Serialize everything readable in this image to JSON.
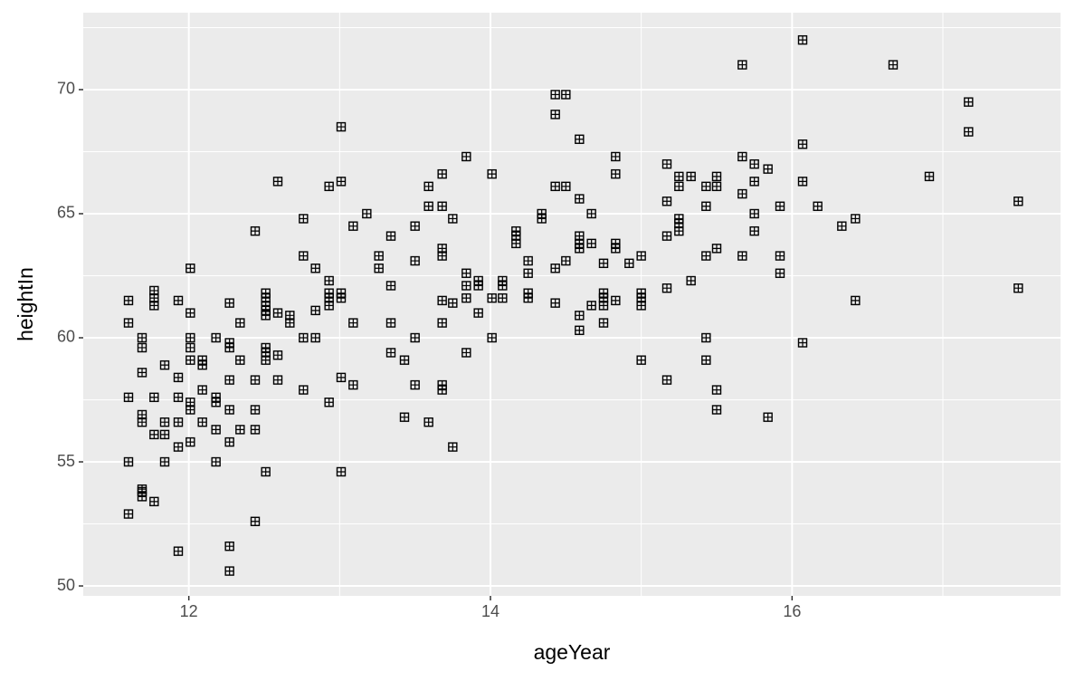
{
  "chart_data": {
    "type": "scatter",
    "x_label": "ageYear",
    "y_label": "heightIn",
    "xlim": [
      11.3,
      17.78
    ],
    "ylim": [
      49.6,
      73.1
    ],
    "xticks": [
      12,
      14,
      16
    ],
    "yticks": [
      50,
      55,
      60,
      65,
      70
    ],
    "x_minor_ticks": [
      11,
      13,
      15,
      17
    ],
    "y_minor_ticks": [
      52.5,
      57.5,
      62.5,
      67.5,
      72.5
    ],
    "grid": true,
    "background": "#ebebeb",
    "color": "#000000",
    "marker": "square-plus",
    "x": [
      11.6,
      11.6,
      11.6,
      11.6,
      11.6,
      11.69,
      11.69,
      11.69,
      11.69,
      11.69,
      11.69,
      11.69,
      11.69,
      11.77,
      11.77,
      11.77,
      11.77,
      11.77,
      11.77,
      11.84,
      11.84,
      11.84,
      11.84,
      11.93,
      11.93,
      11.93,
      11.93,
      11.93,
      11.93,
      12.01,
      12.01,
      12.01,
      12.01,
      12.01,
      12.01,
      12.01,
      12.01,
      12.09,
      12.09,
      12.09,
      12.09,
      12.18,
      12.18,
      12.18,
      12.18,
      12.18,
      12.27,
      12.27,
      12.27,
      12.27,
      12.27,
      12.27,
      12.27,
      12.27,
      12.34,
      12.34,
      12.34,
      12.44,
      12.44,
      12.44,
      12.44,
      12.44,
      12.51,
      12.51,
      12.51,
      12.51,
      12.51,
      12.51,
      12.51,
      12.51,
      12.51,
      12.59,
      12.59,
      12.59,
      12.59,
      12.67,
      12.67,
      12.76,
      12.76,
      12.76,
      12.76,
      12.84,
      12.84,
      12.84,
      12.93,
      12.93,
      12.93,
      12.93,
      12.93,
      12.93,
      13.01,
      13.01,
      13.01,
      13.01,
      13.01,
      13.01,
      13.09,
      13.09,
      13.09,
      13.18,
      13.26,
      13.26,
      13.34,
      13.34,
      13.34,
      13.34,
      13.43,
      13.43,
      13.5,
      13.5,
      13.5,
      13.5,
      13.59,
      13.59,
      13.59,
      13.68,
      13.68,
      13.68,
      13.68,
      13.68,
      13.68,
      13.68,
      13.68,
      13.75,
      13.75,
      13.75,
      13.84,
      13.84,
      13.84,
      13.84,
      13.84,
      13.92,
      13.92,
      13.92,
      14.01,
      14.01,
      14.01,
      14.08,
      14.08,
      14.08,
      14.17,
      14.17,
      14.17,
      14.25,
      14.25,
      14.25,
      14.25,
      14.34,
      14.34,
      14.43,
      14.43,
      14.43,
      14.43,
      14.43,
      14.5,
      14.5,
      14.5,
      14.59,
      14.59,
      14.59,
      14.59,
      14.59,
      14.59,
      14.59,
      14.67,
      14.67,
      14.67,
      14.75,
      14.75,
      14.75,
      14.75,
      14.75,
      14.83,
      14.83,
      14.83,
      14.83,
      14.83,
      14.92,
      15.0,
      15.0,
      15.0,
      15.0,
      15.0,
      15.17,
      15.17,
      15.17,
      15.17,
      15.17,
      15.25,
      15.25,
      15.25,
      15.25,
      15.25,
      15.33,
      15.33,
      15.43,
      15.43,
      15.43,
      15.43,
      15.43,
      15.5,
      15.5,
      15.5,
      15.5,
      15.5,
      15.67,
      15.67,
      15.67,
      15.67,
      15.75,
      15.75,
      15.75,
      15.75,
      15.84,
      15.84,
      15.92,
      15.92,
      15.92,
      16.07,
      16.07,
      16.07,
      16.07,
      16.17,
      16.33,
      16.42,
      16.42,
      16.67,
      16.91,
      17.17,
      17.17,
      17.5,
      17.5
    ],
    "values": [
      61.5,
      60.6,
      57.6,
      55.0,
      52.9,
      60.0,
      59.6,
      58.6,
      56.9,
      56.6,
      53.9,
      53.6,
      53.8,
      61.9,
      61.6,
      61.3,
      57.6,
      56.1,
      53.4,
      58.9,
      56.6,
      56.1,
      55.0,
      61.5,
      58.4,
      57.6,
      56.6,
      55.6,
      51.4,
      62.8,
      61.0,
      60.0,
      59.6,
      59.1,
      57.4,
      57.1,
      55.8,
      59.1,
      58.9,
      57.9,
      56.6,
      60.0,
      57.6,
      57.4,
      56.3,
      55.0,
      61.4,
      59.8,
      59.6,
      58.3,
      57.1,
      55.8,
      51.6,
      50.6,
      60.6,
      59.1,
      56.3,
      64.3,
      58.3,
      57.1,
      56.3,
      52.6,
      61.8,
      61.6,
      61.3,
      61.1,
      60.9,
      59.6,
      59.4,
      59.1,
      54.6,
      66.3,
      61.0,
      59.3,
      58.3,
      60.9,
      60.6,
      64.8,
      63.3,
      60.0,
      57.9,
      62.8,
      61.1,
      60.0,
      66.1,
      62.3,
      61.8,
      61.6,
      61.3,
      57.4,
      68.5,
      66.3,
      61.8,
      61.6,
      58.4,
      54.6,
      64.5,
      60.6,
      58.1,
      65.0,
      63.3,
      62.8,
      64.1,
      62.1,
      60.6,
      59.4,
      59.1,
      56.8,
      64.5,
      63.1,
      60.0,
      58.1,
      66.1,
      65.3,
      56.6,
      66.6,
      65.3,
      63.6,
      63.3,
      61.5,
      60.6,
      58.1,
      57.9,
      64.8,
      61.4,
      55.6,
      67.3,
      62.6,
      62.1,
      61.6,
      59.4,
      62.3,
      62.1,
      61.0,
      66.6,
      61.6,
      60.0,
      62.3,
      62.1,
      61.6,
      64.3,
      64.1,
      63.8,
      63.1,
      62.6,
      61.8,
      61.6,
      65.0,
      64.8,
      69.8,
      69.0,
      66.1,
      62.8,
      61.4,
      69.8,
      66.1,
      63.1,
      68.0,
      65.6,
      64.1,
      63.8,
      63.6,
      60.9,
      60.3,
      65.0,
      63.8,
      61.3,
      63.0,
      61.8,
      61.6,
      61.3,
      60.6,
      67.3,
      66.6,
      63.8,
      63.6,
      61.5,
      63.0,
      63.3,
      61.8,
      61.6,
      61.3,
      59.1,
      67.0,
      65.5,
      64.1,
      62.0,
      58.3,
      66.5,
      66.1,
      64.8,
      64.6,
      64.3,
      66.5,
      62.3,
      66.1,
      65.3,
      63.3,
      60.0,
      59.1,
      66.1,
      66.5,
      63.6,
      57.9,
      57.1,
      71.0,
      67.3,
      65.8,
      63.3,
      67.0,
      66.3,
      65.0,
      64.3,
      66.8,
      56.8,
      65.3,
      63.3,
      62.6,
      72.0,
      67.8,
      66.3,
      59.8,
      65.3,
      64.5,
      64.8,
      61.5,
      71.0,
      66.5,
      69.5,
      68.3,
      65.5,
      62.0
    ]
  }
}
